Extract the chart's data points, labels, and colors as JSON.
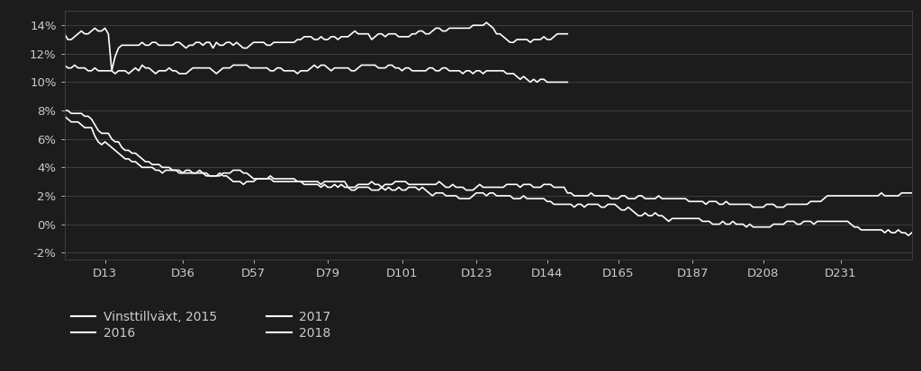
{
  "background_color": "#1c1c1c",
  "text_color": "#cccccc",
  "grid_color": "#444444",
  "line_color": "#ffffff",
  "ylim": [
    -0.025,
    0.15
  ],
  "yticks": [
    -0.02,
    0.0,
    0.02,
    0.04,
    0.06,
    0.08,
    0.1,
    0.12,
    0.14
  ],
  "ytick_labels": [
    "-2%",
    "0%",
    "2%",
    "4%",
    "6%",
    "8%",
    "10%",
    "12%",
    "14%"
  ],
  "xtick_positions": [
    13,
    36,
    57,
    79,
    101,
    123,
    144,
    165,
    187,
    208,
    231
  ],
  "xtick_labels": [
    "D13",
    "D36",
    "D57",
    "D79",
    "D101",
    "D123",
    "D144",
    "D165",
    "D187",
    "D208",
    "D231"
  ],
  "legend_entries": [
    "Vinsttillväxt, 2015",
    "2016",
    "2017",
    "2018"
  ],
  "n_points": 252
}
